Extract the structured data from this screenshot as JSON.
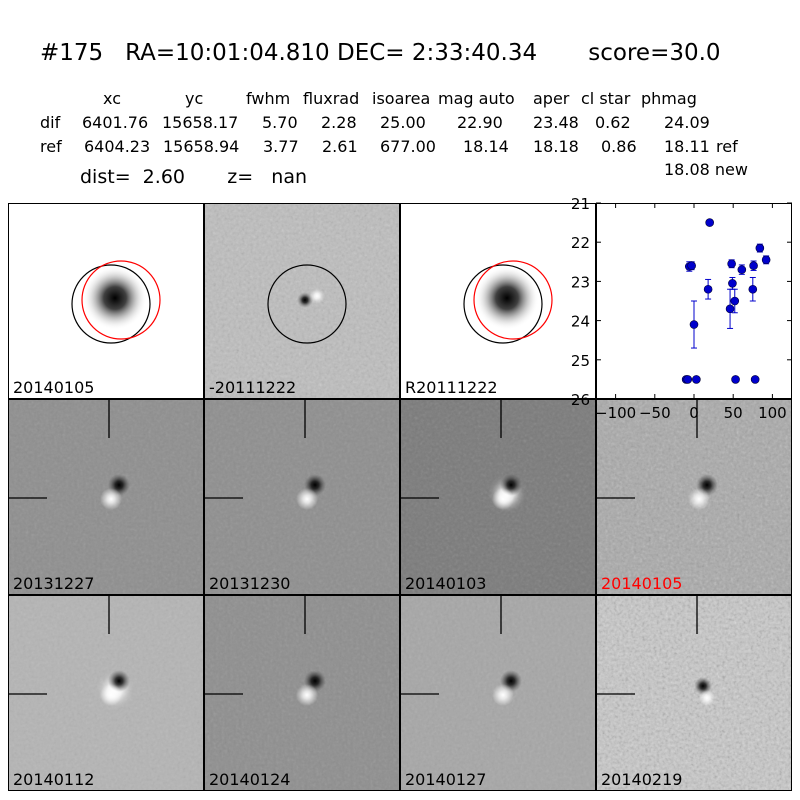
{
  "header": {
    "title": "#175   RA=10:01:04.810 DEC= 2:33:40.34       score=30.0",
    "columns": [
      "xc",
      "yc",
      "fwhm",
      "fluxrad",
      "isoarea",
      "mag auto",
      "aper",
      "cl star",
      "phmag"
    ],
    "rows": [
      {
        "label": "dif",
        "values": [
          "6401.76",
          "15658.17",
          "5.70",
          "2.28",
          "25.00",
          "22.90",
          "23.48",
          "0.62",
          "24.09"
        ],
        "suffix": ""
      },
      {
        "label": "ref",
        "values": [
          "6404.23",
          "15658.94",
          "3.77",
          "2.61",
          "677.00",
          "18.14",
          "18.18",
          "0.86",
          "18.11"
        ],
        "suffix": "ref"
      }
    ],
    "new_mag": "18.08 new",
    "dist_text": "dist=  2.60       z=   nan"
  },
  "panels": [
    {
      "label": "20140105",
      "style": "star",
      "bg": "#ffffff",
      "circles": true,
      "label_color": "#000000"
    },
    {
      "label": "-20111222",
      "style": "diff",
      "bg": "#bdbdbd",
      "circles": true,
      "label_color": "#000000"
    },
    {
      "label": "R20111222",
      "style": "star",
      "bg": "#ffffff",
      "circles": true,
      "label_color": "#000000"
    },
    {
      "label": "20131227",
      "style": "dipole",
      "bg": "#8e8e8e",
      "crosshair": true,
      "label_color": "#000000"
    },
    {
      "label": "20131230",
      "style": "dipole",
      "bg": "#8e8e8e",
      "crosshair": true,
      "label_color": "#000000"
    },
    {
      "label": "20140103",
      "style": "ring",
      "bg": "#7a7a7a",
      "crosshair": true,
      "label_color": "#000000"
    },
    {
      "label": "20140105",
      "style": "dipole-small",
      "bg": "#a8a8a8",
      "crosshair": true,
      "label_color": "#ff0000"
    },
    {
      "label": "20140112",
      "style": "ring",
      "bg": "#b4b4b4",
      "crosshair": true,
      "label_color": "#000000"
    },
    {
      "label": "20140124",
      "style": "dipole",
      "bg": "#8e8e8e",
      "crosshair": true,
      "label_color": "#000000"
    },
    {
      "label": "20140127",
      "style": "dipole",
      "bg": "#a6a6a6",
      "crosshair": true,
      "label_color": "#000000"
    },
    {
      "label": "20140219",
      "style": "noisy",
      "bg": "#c8c8c8",
      "crosshair": true,
      "label_color": "#000000"
    }
  ],
  "chart_data": {
    "type": "scatter",
    "xlim": [
      -125,
      125
    ],
    "ylim": [
      26,
      21
    ],
    "xticks": [
      -100,
      -50,
      0,
      50,
      100
    ],
    "xtick_labels": [
      "−100",
      "−50",
      "0",
      "50",
      "100"
    ],
    "yticks": [
      21,
      22,
      23,
      24,
      25,
      26
    ],
    "ytick_labels": [
      "21",
      "22",
      "23",
      "24",
      "25",
      "26"
    ],
    "color": "#0000cc",
    "points": [
      {
        "x": -10,
        "y": 25.5,
        "err": 0
      },
      {
        "x": -8,
        "y": 25.5,
        "err": 0
      },
      {
        "x": -6,
        "y": 22.62,
        "err": 0.12
      },
      {
        "x": -3,
        "y": 22.6,
        "err": 0.1
      },
      {
        "x": 0,
        "y": 24.1,
        "err": 0.6
      },
      {
        "x": 3,
        "y": 25.5,
        "err": 0
      },
      {
        "x": 18,
        "y": 23.2,
        "err": 0.25
      },
      {
        "x": 20,
        "y": 21.5,
        "err": 0
      },
      {
        "x": 46,
        "y": 23.7,
        "err": 0.5
      },
      {
        "x": 48,
        "y": 22.55,
        "err": 0.1
      },
      {
        "x": 49,
        "y": 23.05,
        "err": 0.15
      },
      {
        "x": 52,
        "y": 23.5,
        "err": 0.3
      },
      {
        "x": 53,
        "y": 25.5,
        "err": 0
      },
      {
        "x": 61,
        "y": 22.7,
        "err": 0.12
      },
      {
        "x": 75,
        "y": 23.2,
        "err": 0.3
      },
      {
        "x": 76,
        "y": 22.6,
        "err": 0.12
      },
      {
        "x": 78,
        "y": 25.5,
        "err": 0
      },
      {
        "x": 84,
        "y": 22.15,
        "err": 0.1
      },
      {
        "x": 92,
        "y": 22.45,
        "err": 0.1
      }
    ]
  }
}
